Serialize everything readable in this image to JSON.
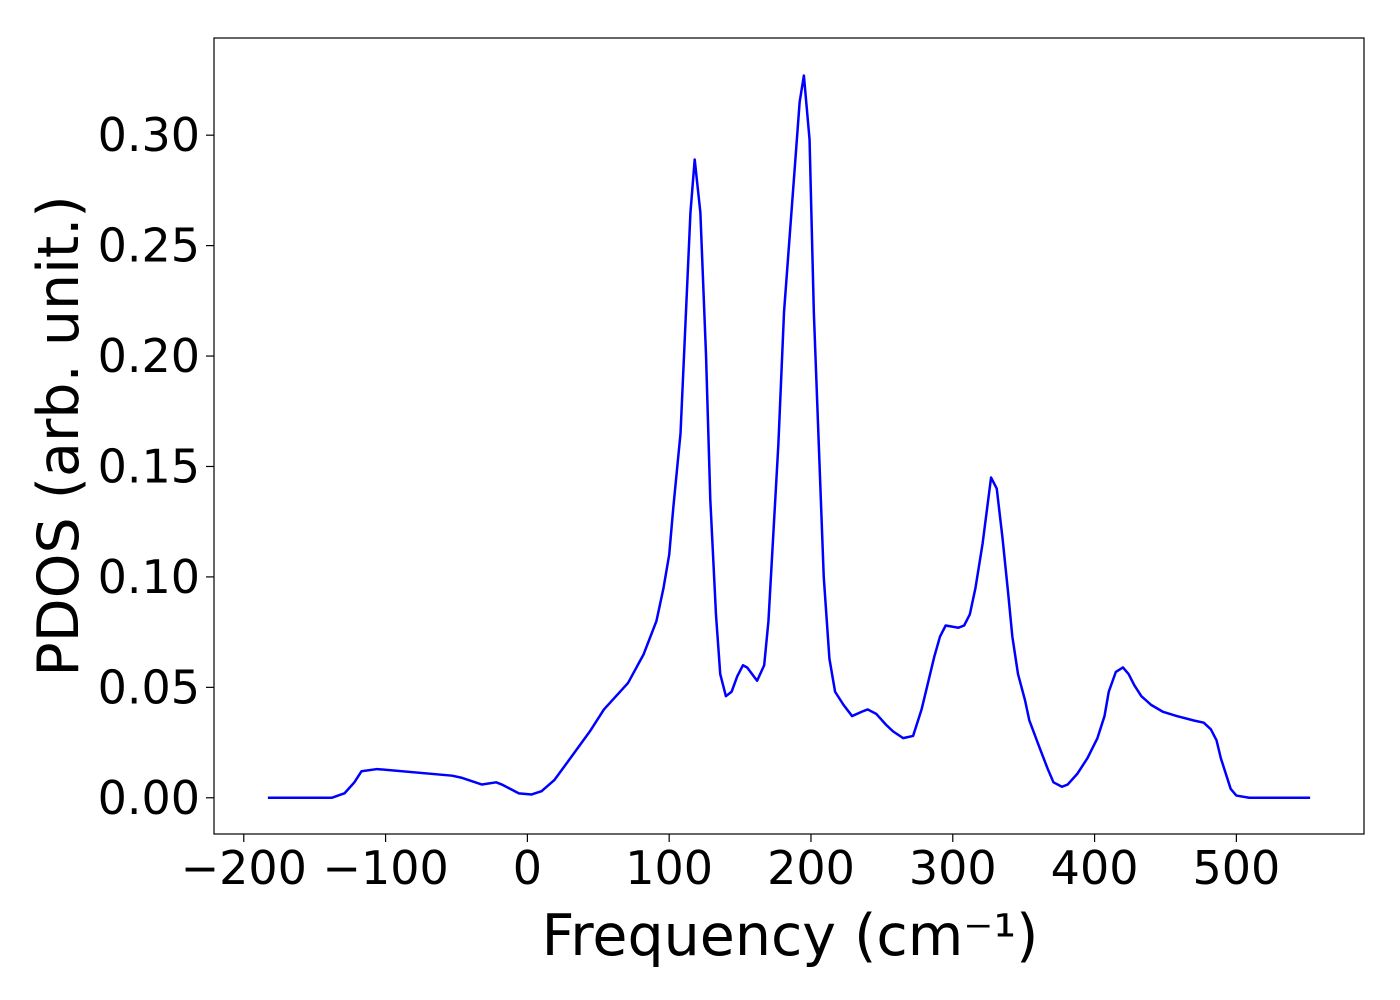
{
  "chart_data": {
    "type": "line",
    "xlabel": "Frequency (cm⁻¹)",
    "ylabel": "PDOS (arb. unit.)",
    "xlim": [
      -221,
      590
    ],
    "ylim": [
      -0.0164,
      0.344
    ],
    "xticks": [
      {
        "value": -200,
        "label": "−200"
      },
      {
        "value": -100,
        "label": "−100"
      },
      0,
      100,
      200,
      300,
      400,
      500
    ],
    "yticks": [
      {
        "value": 0,
        "label": "0.00"
      },
      {
        "value": 0.05,
        "label": "0.05"
      },
      {
        "value": 0.1,
        "label": "0.10"
      },
      {
        "value": 0.15,
        "label": "0.15"
      },
      {
        "value": 0.2,
        "label": "0.20"
      },
      {
        "value": 0.25,
        "label": "0.25"
      },
      {
        "value": 0.3,
        "label": "0.30"
      }
    ],
    "series": [
      {
        "color": "#0000ff",
        "x": [
          -183,
          -138,
          -129,
          -122,
          -117,
          -106,
          -53,
          -46,
          -32,
          -22,
          -18,
          -6,
          3,
          10,
          19,
          27,
          44,
          54,
          71,
          82,
          91,
          96,
          100,
          103,
          108,
          115,
          118,
          122,
          126,
          129,
          133,
          136,
          140,
          144,
          148,
          152,
          155,
          162,
          167,
          170,
          177,
          181,
          192,
          195,
          199,
          202,
          209,
          213,
          217,
          223,
          229,
          236,
          240,
          246,
          253,
          258,
          265,
          272,
          278,
          287,
          291,
          295,
          304,
          308,
          312,
          316,
          321,
          325,
          327,
          331,
          335,
          339,
          342,
          346,
          351,
          354,
          361,
          367,
          371,
          377,
          381,
          388,
          395,
          402,
          407,
          410,
          415,
          420,
          424,
          428,
          433,
          440,
          448,
          458,
          470,
          477,
          482,
          486,
          489,
          493,
          496,
          500,
          509,
          552
        ],
        "values": [
          0,
          0,
          0.002,
          0.007,
          0.012,
          0.013,
          0.01,
          0.009,
          0.006,
          0.007,
          0.006,
          0.002,
          0.0015,
          0.003,
          0.008,
          0.015,
          0.03,
          0.04,
          0.052,
          0.065,
          0.08,
          0.095,
          0.11,
          0.132,
          0.165,
          0.265,
          0.289,
          0.265,
          0.2,
          0.135,
          0.083,
          0.056,
          0.046,
          0.048,
          0.055,
          0.06,
          0.059,
          0.053,
          0.06,
          0.08,
          0.16,
          0.22,
          0.315,
          0.327,
          0.298,
          0.22,
          0.1,
          0.063,
          0.048,
          0.042,
          0.037,
          0.039,
          0.04,
          0.038,
          0.033,
          0.03,
          0.027,
          0.028,
          0.04,
          0.064,
          0.073,
          0.078,
          0.077,
          0.078,
          0.083,
          0.095,
          0.115,
          0.135,
          0.145,
          0.14,
          0.118,
          0.093,
          0.073,
          0.056,
          0.044,
          0.035,
          0.023,
          0.013,
          0.007,
          0.005,
          0.006,
          0.011,
          0.018,
          0.027,
          0.037,
          0.048,
          0.057,
          0.059,
          0.056,
          0.051,
          0.046,
          0.042,
          0.039,
          0.037,
          0.035,
          0.034,
          0.031,
          0.026,
          0.018,
          0.01,
          0.004,
          0.001,
          0,
          0
        ]
      }
    ]
  }
}
